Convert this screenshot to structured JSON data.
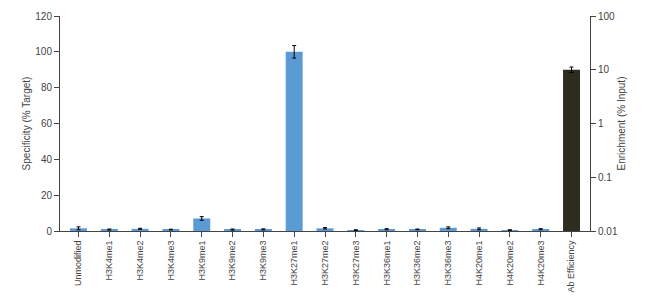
{
  "chart_data": {
    "type": "bar",
    "categories": [
      "Unmodified",
      "H3K4me1",
      "H3K4me2",
      "H3K4me3",
      "H3K9me1",
      "H3K9me2",
      "H3K9me3",
      "H3K27me1",
      "H3K27me2",
      "H3K27me3",
      "H3K36me1",
      "H3K36me2",
      "H3K36me3",
      "H4K20me1",
      "H4K20me2",
      "H4K20me3",
      "Ab Efficiency"
    ],
    "values": [
      1.5,
      0.8,
      1.2,
      0.8,
      7.0,
      0.8,
      0.9,
      100.0,
      1.5,
      0.5,
      1.0,
      0.9,
      1.8,
      1.2,
      0.5,
      1.0,
      90.0
    ],
    "errors": [
      0.8,
      0.3,
      0.3,
      0.2,
      1.0,
      0.3,
      0.3,
      3.5,
      0.4,
      0.2,
      0.3,
      0.2,
      0.5,
      0.5,
      0.2,
      0.3,
      1.5
    ],
    "colors": [
      "#5B9BD5",
      "#5B9BD5",
      "#5B9BD5",
      "#5B9BD5",
      "#5B9BD5",
      "#5B9BD5",
      "#5B9BD5",
      "#5B9BD5",
      "#5B9BD5",
      "#5B9BD5",
      "#5B9BD5",
      "#5B9BD5",
      "#5B9BD5",
      "#5B9BD5",
      "#5B9BD5",
      "#5B9BD5",
      "#2D2D1F"
    ],
    "ylabel": "Specificity (% Target)",
    "y2label": "Enrichment (% Input)",
    "ylim": [
      0,
      120
    ],
    "yticks": [
      0,
      20,
      40,
      60,
      80,
      100,
      120
    ],
    "y2lim": [
      0.01,
      100
    ],
    "y2ticks": [
      0.01,
      0.1,
      1,
      10,
      100
    ],
    "log": "y2",
    "grid": false
  }
}
